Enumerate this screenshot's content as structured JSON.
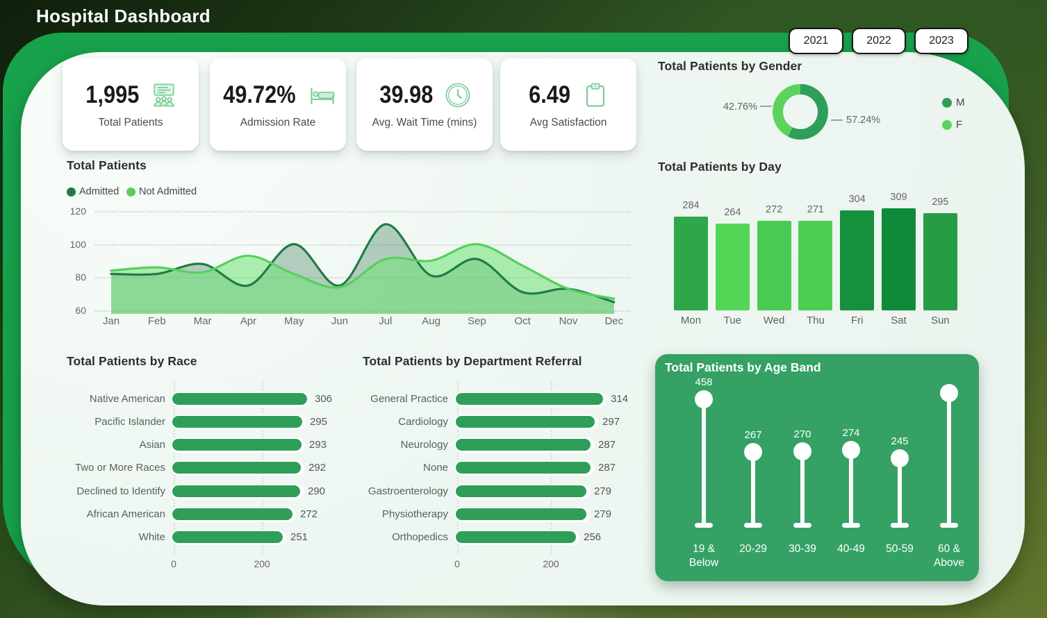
{
  "page": {
    "title": "Hospital Dashboard"
  },
  "colors": {
    "accent_green": "#18a24c",
    "panel": "#eef6f1",
    "dark_green": "#2e9e58",
    "light_green": "#5cd35f",
    "bar_green": "#2f9e59",
    "age_card_green": "#35a164"
  },
  "year_filters": [
    {
      "label": "2021"
    },
    {
      "label": "2022"
    },
    {
      "label": "2023"
    }
  ],
  "kpis": [
    {
      "value": "1,995",
      "label": "Total Patients",
      "icon": "people-board-icon"
    },
    {
      "value": "49.72%",
      "label": "Admission Rate",
      "icon": "hospital-bed-icon"
    },
    {
      "value": "39.98",
      "label": "Avg. Wait Time (mins)",
      "icon": "clock-icon"
    },
    {
      "value": "6.49",
      "label": "Avg Satisfaction",
      "icon": "clipboard-icon"
    }
  ],
  "chart_data": [
    {
      "id": "gender",
      "type": "pie",
      "title": "Total Patients by Gender",
      "donut": true,
      "slices": [
        {
          "label": "M",
          "pct": 57.24,
          "display": "57.24%",
          "color": "#2e9e58"
        },
        {
          "label": "F",
          "pct": 42.76,
          "display": "42.76%",
          "color": "#5cd35f"
        }
      ],
      "legend_position": "right"
    },
    {
      "id": "monthly-trend",
      "type": "area",
      "title": "Total Patients",
      "x": [
        "Jan",
        "Feb",
        "Mar",
        "Apr",
        "May",
        "Jun",
        "Jul",
        "Aug",
        "Sep",
        "Oct",
        "Nov",
        "Dec"
      ],
      "series": [
        {
          "name": "Admitted",
          "color": "#1f7c46",
          "fill": "rgba(40,110,70,0.32)",
          "values": [
            82,
            82,
            88,
            75,
            100,
            75,
            112,
            81,
            91,
            71,
            73,
            65
          ]
        },
        {
          "name": "Not Admitted",
          "color": "#55d05c",
          "fill": "rgba(110,225,115,0.55)",
          "values": [
            84,
            86,
            83,
            93,
            82,
            74,
            91,
            90,
            100,
            87,
            73,
            67
          ]
        }
      ],
      "ylim": [
        60,
        120
      ],
      "yticks": [
        120,
        100,
        80,
        60
      ],
      "grid": "dotted-horizontal",
      "legend_position": "top-left"
    },
    {
      "id": "by-day",
      "type": "bar",
      "title": "Total Patients by Day",
      "categories": [
        "Mon",
        "Tue",
        "Wed",
        "Thu",
        "Fri",
        "Sat",
        "Sun"
      ],
      "values": [
        284,
        264,
        272,
        271,
        304,
        309,
        295
      ],
      "bar_colors": [
        "#2ea64a",
        "#53d656",
        "#49cb51",
        "#4bce52",
        "#17903d",
        "#0f8a39",
        "#269c44"
      ],
      "data_labels": true,
      "ylim": [
        0,
        310
      ]
    },
    {
      "id": "by-race",
      "type": "bar-horizontal",
      "title": "Total Patients by Race",
      "categories": [
        "Native American",
        "Pacific Islander",
        "Asian",
        "Two or More Races",
        "Declined to Identify",
        "African American",
        "White"
      ],
      "values": [
        306,
        295,
        293,
        292,
        290,
        272,
        251
      ],
      "xticks": [
        "0",
        "200"
      ],
      "bar_color": "#2f9e59",
      "data_labels": true
    },
    {
      "id": "by-department",
      "type": "bar-horizontal",
      "title": "Total Patients by Department Referral",
      "categories": [
        "General Practice",
        "Cardiology",
        "Neurology",
        "None",
        "Gastroenterology",
        "Physiotherapy",
        "Orthopedics"
      ],
      "values": [
        314,
        297,
        287,
        287,
        279,
        279,
        256
      ],
      "xticks": [
        "0",
        "200"
      ],
      "bar_color": "#2f9e59",
      "data_labels": true
    },
    {
      "id": "by-age-band",
      "type": "lollipop",
      "title": "Total Patients by Age Band",
      "categories": [
        [
          "19 &",
          "Below"
        ],
        [
          "20-29"
        ],
        [
          "30-39"
        ],
        [
          "40-49"
        ],
        [
          "50-59"
        ],
        [
          "60 &",
          "Above"
        ]
      ],
      "values": [
        458,
        267,
        270,
        274,
        245,
        481
      ],
      "value_labels": [
        "458",
        "267",
        "270",
        "274",
        "245",
        ""
      ],
      "card_color": "#35a164",
      "point_color": "#ffffff"
    }
  ]
}
